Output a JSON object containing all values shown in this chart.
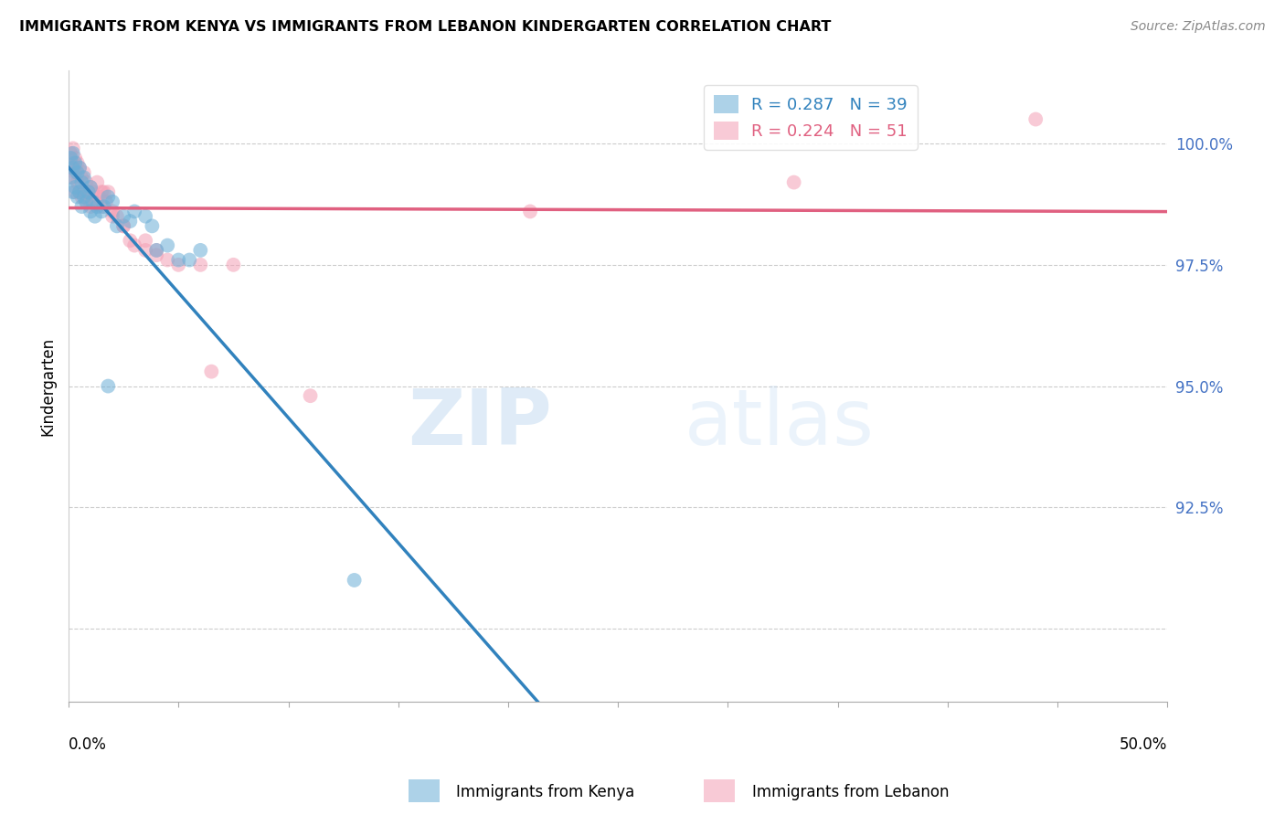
{
  "title": "IMMIGRANTS FROM KENYA VS IMMIGRANTS FROM LEBANON KINDERGARTEN CORRELATION CHART",
  "source": "Source: ZipAtlas.com",
  "ylabel": "Kindergarten",
  "xlim": [
    0.0,
    0.5
  ],
  "ylim": [
    88.5,
    101.5
  ],
  "yticks": [
    90.0,
    92.5,
    95.0,
    97.5,
    100.0
  ],
  "ytick_labels": [
    "",
    "92.5%",
    "95.0%",
    "97.5%",
    "100.0%"
  ],
  "kenya_R": 0.287,
  "kenya_N": 39,
  "lebanon_R": 0.224,
  "lebanon_N": 51,
  "kenya_color": "#6baed6",
  "lebanon_color": "#f4a0b5",
  "kenya_line_color": "#3182bd",
  "lebanon_line_color": "#e06080",
  "kenya_x": [
    0.001,
    0.001,
    0.002,
    0.002,
    0.002,
    0.003,
    0.003,
    0.004,
    0.004,
    0.005,
    0.005,
    0.006,
    0.006,
    0.007,
    0.007,
    0.008,
    0.009,
    0.01,
    0.01,
    0.011,
    0.012,
    0.013,
    0.015,
    0.016,
    0.018,
    0.02,
    0.022,
    0.025,
    0.028,
    0.03,
    0.035,
    0.038,
    0.04,
    0.045,
    0.05,
    0.055,
    0.06,
    0.018,
    0.13
  ],
  "kenya_y": [
    99.7,
    99.3,
    99.8,
    99.5,
    99.0,
    99.6,
    99.1,
    99.4,
    98.9,
    99.5,
    99.0,
    99.2,
    98.7,
    99.3,
    98.9,
    98.8,
    99.0,
    99.1,
    98.6,
    98.8,
    98.5,
    98.7,
    98.6,
    98.7,
    98.9,
    98.8,
    98.3,
    98.5,
    98.4,
    98.6,
    98.5,
    98.3,
    97.8,
    97.9,
    97.6,
    97.6,
    97.8,
    95.0,
    91.0
  ],
  "lebanon_x": [
    0.001,
    0.001,
    0.002,
    0.002,
    0.002,
    0.003,
    0.003,
    0.003,
    0.004,
    0.004,
    0.005,
    0.005,
    0.006,
    0.006,
    0.007,
    0.007,
    0.008,
    0.008,
    0.009,
    0.01,
    0.01,
    0.011,
    0.012,
    0.013,
    0.014,
    0.015,
    0.016,
    0.017,
    0.018,
    0.02,
    0.022,
    0.025,
    0.028,
    0.03,
    0.035,
    0.04,
    0.045,
    0.05,
    0.06,
    0.075,
    0.01,
    0.015,
    0.02,
    0.025,
    0.035,
    0.04,
    0.065,
    0.11,
    0.21,
    0.33,
    0.44
  ],
  "lebanon_y": [
    99.8,
    99.5,
    99.9,
    99.6,
    99.3,
    99.7,
    99.4,
    99.0,
    99.6,
    99.2,
    99.5,
    99.0,
    99.3,
    98.9,
    99.4,
    99.0,
    99.2,
    98.8,
    99.0,
    99.1,
    98.7,
    99.0,
    98.8,
    99.2,
    98.9,
    98.7,
    99.0,
    98.8,
    99.0,
    98.6,
    98.5,
    98.3,
    98.0,
    97.9,
    97.8,
    97.7,
    97.6,
    97.5,
    97.5,
    97.5,
    98.8,
    99.0,
    98.5,
    98.3,
    98.0,
    97.8,
    95.3,
    94.8,
    98.6,
    99.2,
    100.5
  ],
  "watermark_zip": "ZIP",
  "watermark_atlas": "atlas",
  "background_color": "#ffffff"
}
